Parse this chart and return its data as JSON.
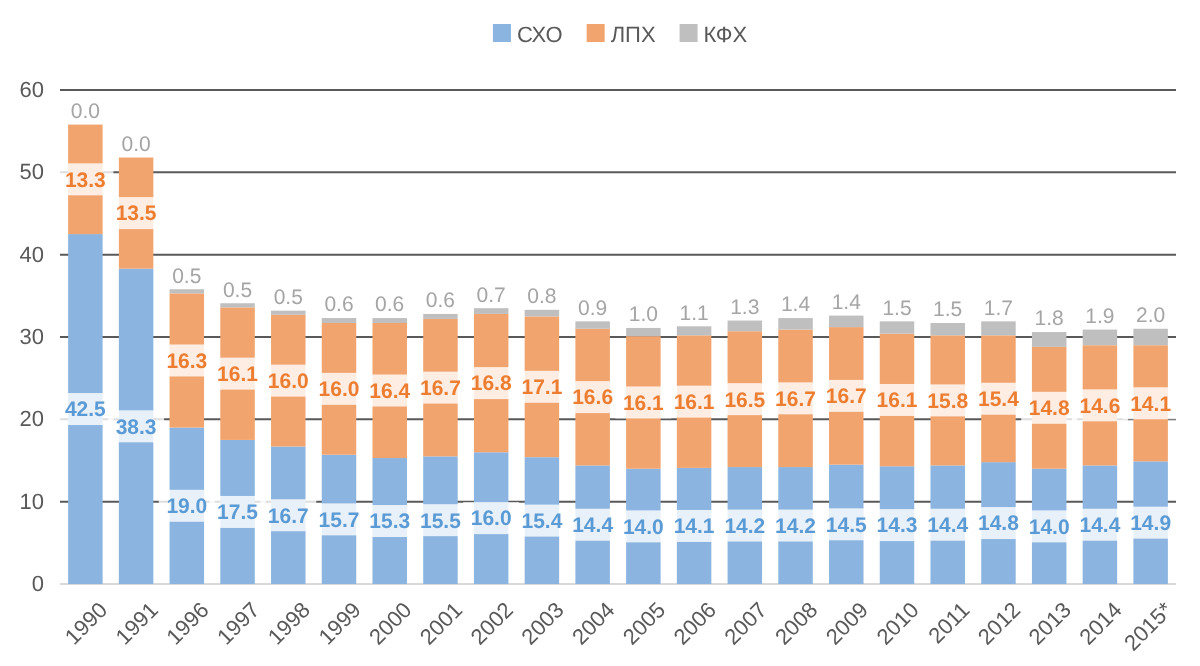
{
  "chart_data": {
    "type": "bar",
    "stacked": true,
    "categories": [
      "1990",
      "1991",
      "1996",
      "1997",
      "1998",
      "1999",
      "2000",
      "2001",
      "2002",
      "2003",
      "2004",
      "2005",
      "2006",
      "2007",
      "2008",
      "2009",
      "2010",
      "2011",
      "2012",
      "2013",
      "2014",
      "2015*"
    ],
    "series": [
      {
        "name": "СХО",
        "color": "#8bb5e0",
        "values": [
          42.5,
          38.3,
          19.0,
          17.5,
          16.7,
          15.7,
          15.3,
          15.5,
          16.0,
          15.4,
          14.4,
          14.0,
          14.1,
          14.2,
          14.2,
          14.5,
          14.3,
          14.4,
          14.8,
          14.0,
          14.4,
          14.9
        ],
        "value_labels": [
          "42.5",
          "38.3",
          "19.0",
          "17.5",
          "16.7",
          "15.7",
          "15.3",
          "15.5",
          "16.0",
          "15.4",
          "14.4",
          "14.0",
          "14.1",
          "14.2",
          "14.2",
          "14.5",
          "14.3",
          "14.4",
          "14.8",
          "14.0",
          "14.4",
          "14.9"
        ]
      },
      {
        "name": "ЛПХ",
        "color": "#f2a46e",
        "values": [
          13.3,
          13.5,
          16.3,
          16.1,
          16.0,
          16.0,
          16.4,
          16.7,
          16.8,
          17.1,
          16.6,
          16.1,
          16.1,
          16.5,
          16.7,
          16.7,
          16.1,
          15.8,
          15.4,
          14.8,
          14.6,
          14.1
        ],
        "value_labels": [
          "13.3",
          "13.5",
          "16.3",
          "16.1",
          "16.0",
          "16.0",
          "16.4",
          "16.7",
          "16.8",
          "17.1",
          "16.6",
          "16.1",
          "16.1",
          "16.5",
          "16.7",
          "16.7",
          "16.1",
          "15.8",
          "15.4",
          "14.8",
          "14.6",
          "14.1"
        ]
      },
      {
        "name": "КФХ",
        "color": "#bfbfbf",
        "values": [
          0.0,
          0.0,
          0.5,
          0.5,
          0.5,
          0.6,
          0.6,
          0.6,
          0.7,
          0.8,
          0.9,
          1.0,
          1.1,
          1.3,
          1.4,
          1.4,
          1.5,
          1.5,
          1.7,
          1.8,
          1.9,
          2.0
        ],
        "value_labels": [
          "0.0",
          "0.0",
          "0.5",
          "0.5",
          "0.5",
          "0.6",
          "0.6",
          "0.6",
          "0.7",
          "0.8",
          "0.9",
          "1.0",
          "1.1",
          "1.3",
          "1.4",
          "1.4",
          "1.5",
          "1.5",
          "1.7",
          "1.8",
          "1.9",
          "2.0"
        ]
      }
    ],
    "ylim": [
      0,
      60
    ],
    "yticks": [
      0,
      10,
      20,
      30,
      40,
      50,
      60
    ],
    "grid": "y",
    "legend": "top"
  }
}
